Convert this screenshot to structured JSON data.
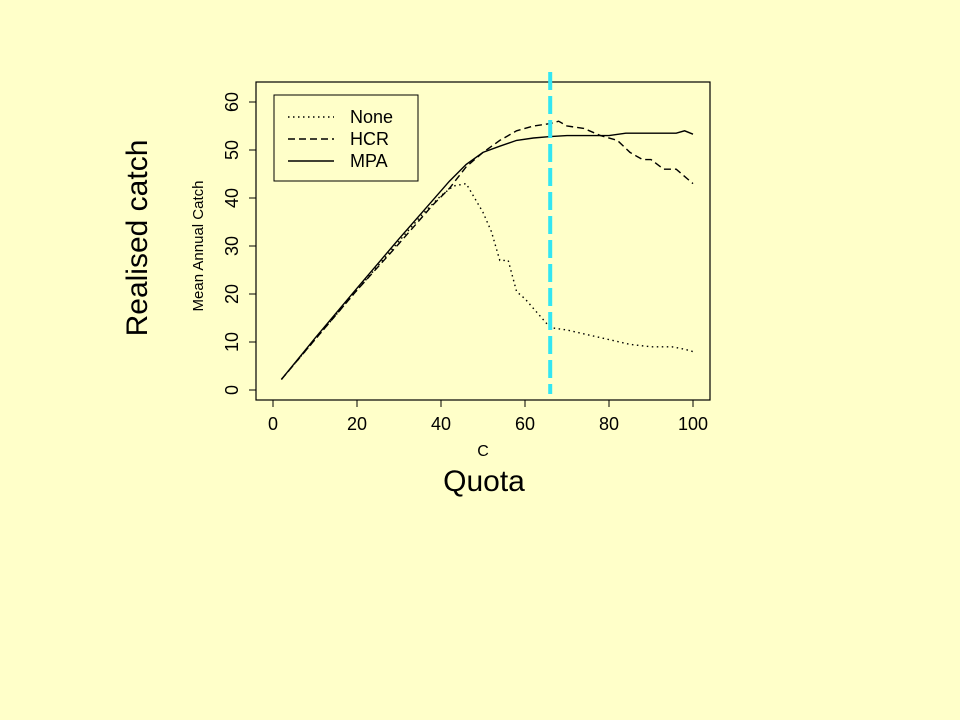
{
  "chart_data": {
    "type": "line",
    "xlabel": "C",
    "ylabel": "Mean Annual Catch",
    "xlim": [
      0,
      100
    ],
    "ylim": [
      0,
      60
    ],
    "xticks": [
      0,
      20,
      40,
      60,
      80,
      100
    ],
    "yticks": [
      0,
      10,
      20,
      30,
      40,
      50,
      60
    ],
    "legend_position": "top-left",
    "grid": false,
    "series": [
      {
        "name": "None",
        "style": "dotted",
        "x": [
          2,
          10,
          20,
          30,
          36,
          40,
          43,
          46,
          48,
          50,
          52,
          54,
          56,
          58,
          60,
          63,
          66,
          70,
          75,
          80,
          85,
          90,
          95,
          98,
          100
        ],
        "y": [
          2.2,
          10.5,
          20.8,
          31,
          37,
          40.5,
          42.5,
          43,
          40,
          37,
          33,
          27,
          27,
          20.5,
          19,
          16,
          13,
          12.5,
          11.5,
          10.5,
          9.5,
          9,
          9,
          8.5,
          8
        ]
      },
      {
        "name": "HCR",
        "style": "dashed",
        "x": [
          2,
          10,
          20,
          30,
          38,
          42,
          46,
          50,
          54,
          58,
          62,
          66,
          68,
          70,
          74,
          78,
          82,
          85,
          88,
          90,
          93,
          96,
          100
        ],
        "y": [
          2.2,
          10.5,
          20.8,
          30.5,
          38.5,
          42,
          46.5,
          49.5,
          52,
          54,
          55,
          55.5,
          56,
          55,
          54.5,
          53,
          52,
          49.5,
          48,
          48,
          46,
          46,
          43
        ]
      },
      {
        "name": "MPA",
        "style": "solid",
        "x": [
          2,
          10,
          20,
          30,
          38,
          42,
          46,
          50,
          54,
          58,
          62,
          66,
          70,
          75,
          80,
          84,
          88,
          92,
          96,
          98,
          100
        ],
        "y": [
          2.2,
          10.8,
          21.2,
          31.5,
          39.5,
          43.5,
          47,
          49.5,
          50.8,
          52,
          52.5,
          52.8,
          53,
          53,
          53,
          53.5,
          53.5,
          53.5,
          53.5,
          54,
          53.3
        ]
      }
    ],
    "reference_line": {
      "x": 66,
      "color": "#33e6f2"
    }
  },
  "annotations": {
    "ylabel": "Realised catch",
    "xlabel": "Quota"
  }
}
